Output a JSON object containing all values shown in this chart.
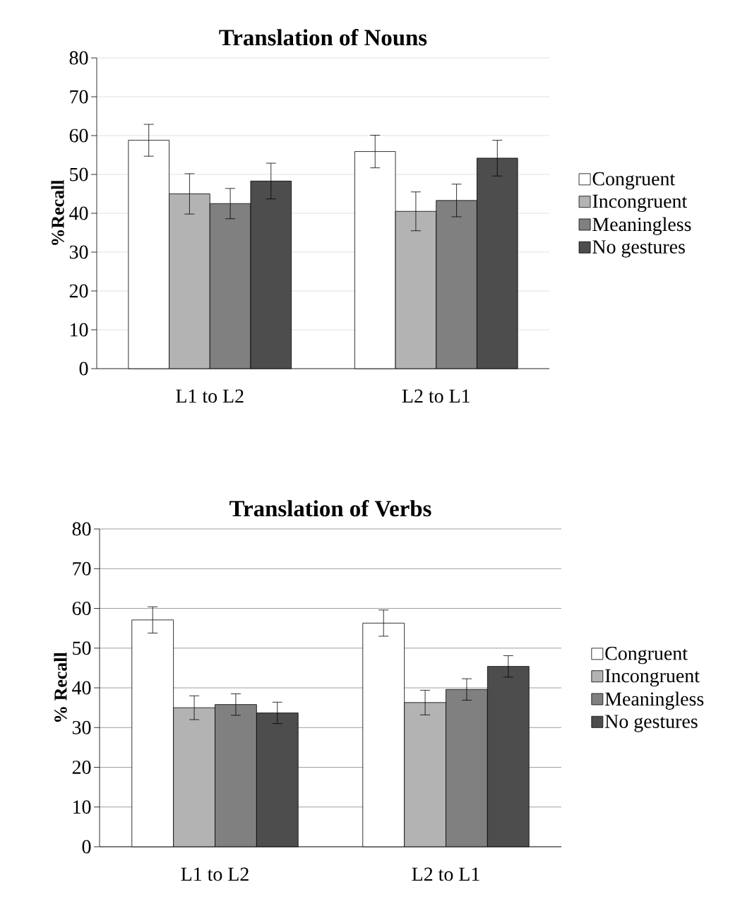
{
  "chart_data": [
    {
      "type": "bar",
      "title": "Translation of Nouns",
      "ylabel": "%Recall",
      "categories": [
        "L1 to L2",
        "L2 to L1"
      ],
      "ylim": [
        0,
        80
      ],
      "yticks": [
        0,
        10,
        20,
        30,
        40,
        50,
        60,
        70,
        80
      ],
      "grid": "y",
      "legend": "right",
      "series": [
        {
          "name": "Congruent",
          "color": "#ffffff",
          "values": [
            58.8,
            55.9
          ],
          "errors": [
            4.1,
            4.2
          ]
        },
        {
          "name": "Incongruent",
          "color": "#b3b3b3",
          "values": [
            45.0,
            40.5
          ],
          "errors": [
            5.2,
            5.0
          ]
        },
        {
          "name": "Meaningless",
          "color": "#808080",
          "values": [
            42.5,
            43.3
          ],
          "errors": [
            3.9,
            4.2
          ]
        },
        {
          "name": "No gestures",
          "color": "#4d4d4d",
          "values": [
            48.3,
            54.2
          ],
          "errors": [
            4.6,
            4.6
          ]
        }
      ]
    },
    {
      "type": "bar",
      "title": "Translation of Verbs",
      "ylabel": "% Recall",
      "categories": [
        "L1 to L2",
        "L2 to L1"
      ],
      "ylim": [
        0,
        80
      ],
      "yticks": [
        0,
        10,
        20,
        30,
        40,
        50,
        60,
        70,
        80
      ],
      "grid": "y",
      "legend": "right",
      "series": [
        {
          "name": "Congruent",
          "color": "#ffffff",
          "values": [
            57.1,
            56.3
          ],
          "errors": [
            3.3,
            3.3
          ]
        },
        {
          "name": "Incongruent",
          "color": "#b3b3b3",
          "values": [
            35.0,
            36.3
          ],
          "errors": [
            3.0,
            3.1
          ]
        },
        {
          "name": "Meaningless",
          "color": "#808080",
          "values": [
            35.8,
            39.6
          ],
          "errors": [
            2.7,
            2.7
          ]
        },
        {
          "name": "No gestures",
          "color": "#4d4d4d",
          "values": [
            33.7,
            45.4
          ],
          "errors": [
            2.7,
            2.7
          ]
        }
      ]
    }
  ]
}
